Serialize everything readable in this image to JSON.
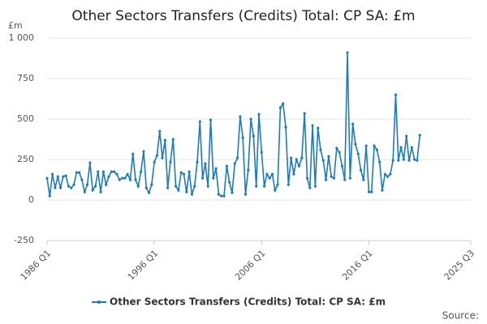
{
  "chart_data": {
    "type": "line",
    "title": "Other Sectors Transfers (Credits) Total: CP SA: £m",
    "y_unit": "£m",
    "source": "Source:",
    "categories": [
      "1986 Q1",
      null,
      null,
      null,
      null,
      null,
      null,
      null,
      null,
      null,
      null,
      null,
      null,
      null,
      null,
      null,
      null,
      null,
      null,
      null,
      null,
      null,
      null,
      null,
      null,
      null,
      null,
      null,
      null,
      null,
      null,
      null,
      null,
      null,
      null,
      null,
      null,
      null,
      null,
      null,
      "1996 Q1",
      null,
      null,
      null,
      null,
      null,
      null,
      null,
      null,
      null,
      null,
      null,
      null,
      null,
      null,
      null,
      null,
      null,
      null,
      null,
      null,
      null,
      null,
      null,
      null,
      null,
      null,
      null,
      null,
      null,
      null,
      null,
      null,
      null,
      null,
      null,
      null,
      null,
      null,
      null,
      "2006 Q1",
      null,
      null,
      null,
      null,
      null,
      null,
      null,
      null,
      null,
      null,
      null,
      null,
      null,
      null,
      null,
      null,
      null,
      null,
      null,
      null,
      null,
      null,
      null,
      null,
      null,
      null,
      null,
      null,
      null,
      null,
      null,
      null,
      null,
      null,
      null,
      null,
      null,
      null,
      null,
      "2016 Q1",
      null,
      null,
      null,
      null,
      null,
      null,
      null,
      null,
      null,
      null,
      null,
      null,
      null,
      null,
      null,
      null,
      null,
      null,
      null,
      null,
      null,
      null,
      null,
      null,
      null,
      null,
      null,
      null,
      null,
      null,
      null,
      null,
      null,
      null,
      null,
      null,
      null,
      "2025 Q3"
    ],
    "series": [
      {
        "name": "Other Sectors Transfers (Credits) Total: CP SA: £m",
        "color": "#1f7ab5",
        "values": [
          135,
          25,
          160,
          75,
          145,
          75,
          145,
          150,
          85,
          75,
          95,
          170,
          170,
          125,
          50,
          95,
          230,
          60,
          85,
          175,
          50,
          175,
          95,
          145,
          175,
          175,
          160,
          125,
          135,
          135,
          160,
          125,
          285,
          125,
          85,
          175,
          300,
          75,
          45,
          95,
          235,
          275,
          425,
          260,
          370,
          75,
          235,
          375,
          85,
          60,
          170,
          160,
          50,
          175,
          35,
          85,
          235,
          485,
          135,
          225,
          85,
          495,
          135,
          195,
          35,
          25,
          25,
          210,
          110,
          45,
          225,
          260,
          515,
          385,
          35,
          185,
          500,
          395,
          85,
          530,
          295,
          85,
          160,
          135,
          160,
          60,
          95,
          570,
          595,
          450,
          95,
          260,
          160,
          250,
          210,
          260,
          535,
          135,
          75,
          460,
          85,
          445,
          310,
          245,
          125,
          270,
          145,
          135,
          320,
          295,
          210,
          125,
          910,
          135,
          470,
          345,
          285,
          185,
          125,
          335,
          50,
          50,
          335,
          310,
          235,
          60,
          160,
          145,
          160,
          245,
          650,
          245,
          325,
          250,
          395,
          245,
          325,
          250,
          245,
          400,
          null,
          null,
          null,
          null,
          null,
          null,
          null,
          null,
          null,
          null,
          null,
          null,
          null,
          null,
          null,
          null,
          null,
          null,
          null
        ]
      }
    ],
    "ylim": [
      -250,
      1000
    ],
    "yticks": [
      -250,
      0,
      250,
      500,
      750,
      {
        "value": 1000,
        "label": "1 000"
      }
    ],
    "grid": true,
    "legend": "bottom"
  }
}
